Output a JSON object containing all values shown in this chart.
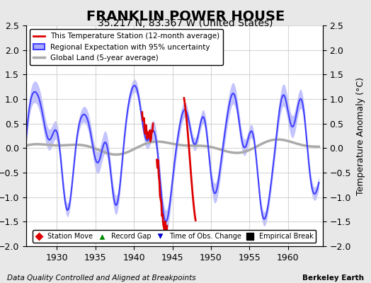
{
  "title": "FRANKLIN POWER HOUSE",
  "subtitle": "35.217 N, 83.367 W (United States)",
  "ylabel": "Temperature Anomaly (°C)",
  "footer_left": "Data Quality Controlled and Aligned at Breakpoints",
  "footer_right": "Berkeley Earth",
  "xlim": [
    1926,
    1964.5
  ],
  "ylim": [
    -2.0,
    2.5
  ],
  "yticks": [
    -2,
    -1.5,
    -1,
    -0.5,
    0,
    0.5,
    1,
    1.5,
    2,
    2.5
  ],
  "xticks": [
    1930,
    1935,
    1940,
    1945,
    1950,
    1955,
    1960
  ],
  "bg_color": "#e8e8e8",
  "plot_bg_color": "#ffffff",
  "regional_color": "#4040ff",
  "regional_fill_color": "#aaaaff",
  "global_color": "#aaaaaa",
  "station_color": "#dd0000",
  "title_fontsize": 14,
  "subtitle_fontsize": 10,
  "legend_symbols": [
    {
      "label": "Station Move",
      "color": "#dd0000",
      "marker": "D"
    },
    {
      "label": "Record Gap",
      "color": "#008800",
      "marker": "^"
    },
    {
      "label": "Time of Obs. Change",
      "color": "#0000cc",
      "marker": "v"
    },
    {
      "label": "Empirical Break",
      "color": "#000000",
      "marker": "s"
    }
  ]
}
